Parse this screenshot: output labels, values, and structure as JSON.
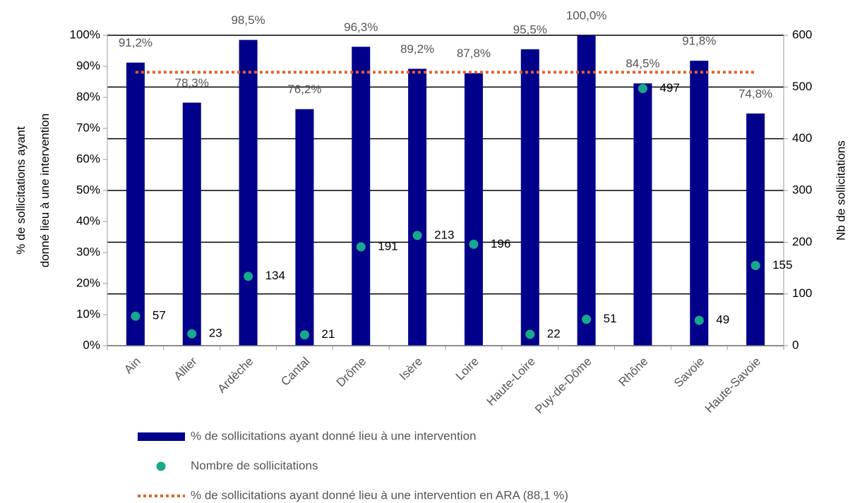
{
  "chart_data": {
    "type": "bar",
    "y_label": [
      "% de sollicitations ayant",
      "donné lieu à une intervention"
    ],
    "y2_label": "Nb de sollicitations",
    "categories": [
      "Ain",
      "Allier",
      "Ardèche",
      "Cantal",
      "Drôme",
      "Isère",
      "Loire",
      "Haute-Loire",
      "Puy-de-Dôme",
      "Rhône",
      "Savoie",
      "Haute-Savoie"
    ],
    "series": [
      {
        "name": "% de sollicitations ayant donné lieu à une intervention",
        "color": "#00008b",
        "values": [
          91.2,
          78.3,
          98.5,
          76.2,
          96.3,
          89.2,
          87.8,
          95.5,
          100,
          84.5,
          91.8,
          74.8
        ],
        "value_labels": [
          "91,2%",
          "78,3%",
          "98,5%",
          "76,2%",
          "96,3%",
          "89,2%",
          "87,8%",
          "95,5%",
          "100,0%",
          "84,5%",
          "91,8%",
          "74,8%"
        ]
      },
      {
        "name": "Nombre de sollicitations",
        "color": "#16a98c",
        "type": "scatter",
        "axis": "y2",
        "values": [
          57,
          23,
          134,
          21,
          191,
          213,
          196,
          22,
          51,
          497,
          49,
          155
        ]
      }
    ],
    "reference_line": {
      "name": "% de sollicitations ayant donné lieu à une intervention en ARA (88,1 %)",
      "color": "#e0622a",
      "value": 88.1,
      "style": "dotted"
    },
    "ylim": [
      0,
      100
    ],
    "yticks": [
      {
        "value": 0,
        "label": "0%"
      },
      {
        "value": 10,
        "label": "10%"
      },
      {
        "value": 20,
        "label": "20%"
      },
      {
        "value": 30,
        "label": "30%"
      },
      {
        "value": 40,
        "label": "40%"
      },
      {
        "value": 50,
        "label": "50%"
      },
      {
        "value": 60,
        "label": "60%"
      },
      {
        "value": 70,
        "label": "70%"
      },
      {
        "value": 80,
        "label": "80%"
      },
      {
        "value": 90,
        "label": "90%"
      },
      {
        "value": 100,
        "label": "100%"
      }
    ],
    "y2lim": [
      0,
      600
    ],
    "y2ticks": [
      0,
      100,
      200,
      300,
      400,
      500,
      600
    ],
    "grid": "y2",
    "legend": "bottom"
  }
}
